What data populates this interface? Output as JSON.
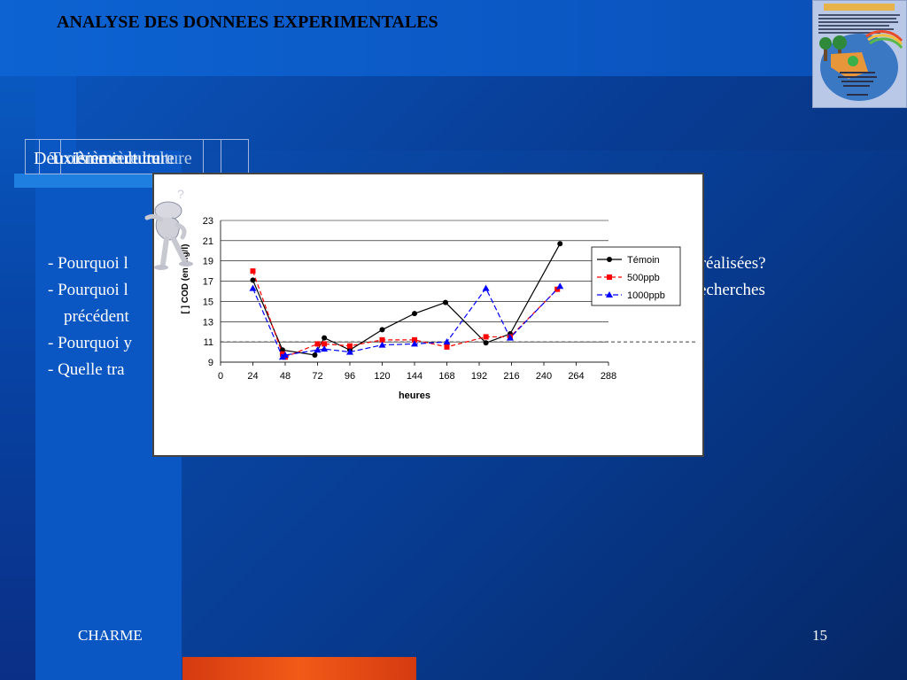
{
  "slide": {
    "title": "ANALYSE DES DONNEES EXPERIMENTALES",
    "tabs": [
      "Deuxième culture",
      "Troisième culture",
      "Première culture"
    ],
    "bullets": [
      "- Pourquoi l",
      "tures réalisées?",
      "- Pourquoi l",
      "echerches",
      "précédent",
      "- Pourquoi y",
      "- Quelle tra"
    ],
    "footer_left": "CHARME",
    "page_number": "15"
  },
  "colors": {
    "temoin": "#000000",
    "ppb500": "#ff0000",
    "ppb1000": "#0000ff"
  },
  "chart_data": {
    "type": "line",
    "x": [
      24,
      48,
      72,
      96,
      120,
      144,
      168,
      192,
      216,
      240,
      264,
      288
    ],
    "series": [
      {
        "name": "Témoin",
        "x": [
          24,
          46,
          70,
          77,
          96,
          120,
          144,
          167,
          197,
          215,
          252
        ],
        "values": [
          17.1,
          10.2,
          9.7,
          11.4,
          10.2,
          12.2,
          13.8,
          14.9,
          10.9,
          11.8,
          20.7
        ]
      },
      {
        "name": "500ppb",
        "x": [
          24,
          46,
          48,
          72,
          77,
          96,
          120,
          144,
          168,
          197,
          215,
          250
        ],
        "values": [
          18.0,
          9.8,
          9.5,
          10.8,
          10.8,
          10.6,
          11.2,
          11.2,
          10.5,
          11.5,
          11.5,
          16.2
        ]
      },
      {
        "name": "1000ppb",
        "x": [
          24,
          46,
          48,
          72,
          77,
          96,
          120,
          144,
          168,
          197,
          215,
          252
        ],
        "values": [
          16.3,
          9.5,
          9.7,
          10.2,
          10.3,
          10.0,
          10.7,
          10.8,
          11.0,
          16.3,
          11.4,
          16.5
        ]
      }
    ],
    "xlabel": "heures",
    "ylabel": "[ ] COD (en mg/l)",
    "ylim": [
      9,
      23
    ],
    "xlim": [
      0,
      288
    ],
    "yticks": [
      9,
      11,
      13,
      15,
      17,
      19,
      21,
      23
    ],
    "xticks": [
      0,
      24,
      48,
      72,
      96,
      120,
      144,
      168,
      192,
      216,
      240,
      264,
      288
    ],
    "grid": true,
    "legend": "right",
    "reference_line": 11
  }
}
